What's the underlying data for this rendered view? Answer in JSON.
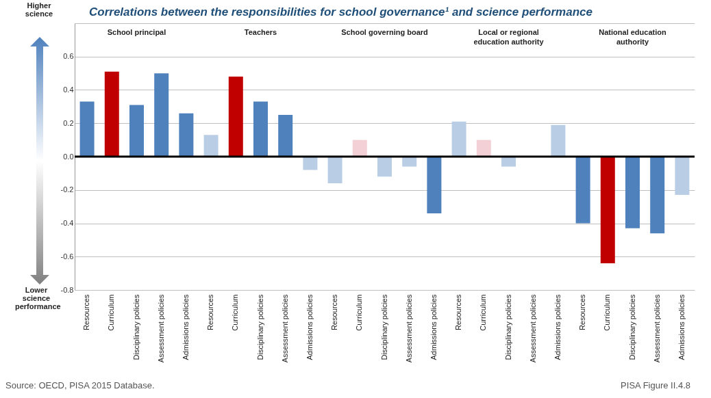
{
  "chart_data": {
    "type": "bar",
    "title": "Correlations between the responsibilities for school governance¹ and science performance",
    "categories": [
      "Resources",
      "Curriculum",
      "Disciplinary policies",
      "Assessment policies",
      "Admissions policies",
      "Resources",
      "Curriculum",
      "Disciplinary policies",
      "Assessment policies",
      "Admissions policies",
      "Resources",
      "Curriculum",
      "Disciplinary policies",
      "Assessment policies",
      "Admissions policies",
      "Resources",
      "Curriculum",
      "Disciplinary policies",
      "Assessment policies",
      "Admissions policies",
      "Resources",
      "Curriculum",
      "Disciplinary policies",
      "Assessment policies",
      "Admissions policies"
    ],
    "values": [
      0.33,
      0.51,
      0.31,
      0.5,
      0.26,
      0.13,
      0.48,
      0.33,
      0.25,
      -0.08,
      -0.16,
      0.1,
      -0.12,
      -0.06,
      -0.34,
      0.21,
      0.1,
      -0.06,
      null,
      0.19,
      -0.4,
      -0.64,
      -0.43,
      -0.46,
      -0.23
    ],
    "colors": [
      "#4f81bd",
      "#c00000",
      "#4f81bd",
      "#4f81bd",
      "#4f81bd",
      "#b9cde5",
      "#c00000",
      "#4f81bd",
      "#4f81bd",
      "#b9cde5",
      "#b9cde5",
      "#f2d0d5",
      "#b9cde5",
      "#b9cde5",
      "#4f81bd",
      "#b9cde5",
      "#f2d0d5",
      "#b9cde5",
      "#b9cde5",
      "#b9cde5",
      "#4f81bd",
      "#c00000",
      "#4f81bd",
      "#4f81bd",
      "#b9cde5"
    ],
    "ylim": [
      -0.8,
      0.8
    ],
    "yticks": [
      -0.8,
      -0.6,
      -0.4,
      -0.2,
      {
        "value": 0,
        "label": "0.0"
      },
      0.2,
      0.4,
      0.6,
      {
        "value": 0.8,
        "label": null
      }
    ],
    "grid": "y",
    "ref_lines": [
      {
        "axis": "y",
        "value": 0,
        "color": "#000000"
      }
    ],
    "annotations": [
      "School principal",
      "Teachers",
      "School governing board",
      "Local or regional education authority",
      "National education authority",
      "Higher science",
      "Lower science performance",
      "Source: OECD, PISA 2015 Database.",
      "PISA Figure II.4.8"
    ]
  }
}
